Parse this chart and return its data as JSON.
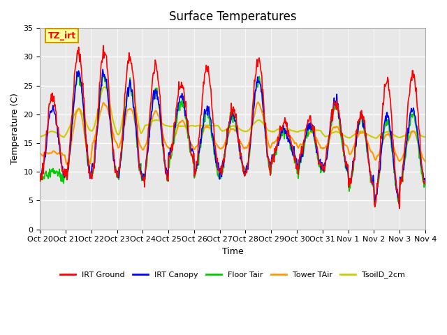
{
  "title": "Surface Temperatures",
  "xlabel": "Time",
  "ylabel": "Temperature (C)",
  "ylim": [
    0,
    35
  ],
  "yticks": [
    0,
    5,
    10,
    15,
    20,
    25,
    30,
    35
  ],
  "x_labels": [
    "Oct 20",
    "Oct 21",
    "Oct 22",
    "Oct 23",
    "Oct 24",
    "Oct 25",
    "Oct 26",
    "Oct 27",
    "Oct 28",
    "Oct 29",
    "Oct 30",
    "Oct 31",
    "Nov 1",
    "Nov 2",
    "Nov 3",
    "Nov 4"
  ],
  "annotation_text": "TZ_irt",
  "legend_entries": [
    "IRT Ground",
    "IRT Canopy",
    "Floor Tair",
    "Tower TAir",
    "TsoilD_2cm"
  ],
  "legend_colors": [
    "#ff0000",
    "#0000ff",
    "#00cc00",
    "#ff9900",
    "#cccc00"
  ],
  "background_color": "#e8e8e8",
  "plot_bg": "#e8e8e8",
  "grid_color": "#ffffff",
  "series_colors": [
    "#ff0000",
    "#0000ff",
    "#00cc00",
    "#ff9900",
    "#cccc00"
  ],
  "num_days": 15,
  "pts_per_day": 48
}
